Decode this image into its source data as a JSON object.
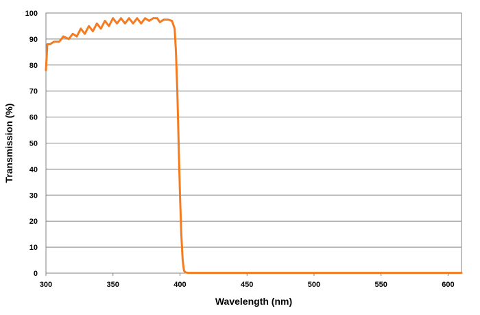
{
  "chart_data": {
    "type": "line",
    "title": "",
    "xlabel": "Wavelength (nm)",
    "ylabel": "Transmission (%)",
    "xlim": [
      300,
      610
    ],
    "ylim": [
      0,
      100
    ],
    "x_ticks": [
      300,
      350,
      400,
      450,
      500,
      550,
      600
    ],
    "y_ticks": [
      0,
      10,
      20,
      30,
      40,
      50,
      60,
      70,
      80,
      90,
      100
    ],
    "grid": "horizontal",
    "legend": "none",
    "line_color": "#F47B20",
    "series": [
      {
        "x": [
          300,
          301,
          303,
          306,
          310,
          313,
          317,
          320,
          323,
          326,
          329,
          332,
          335,
          338,
          341,
          344,
          347,
          350,
          353,
          356,
          359,
          362,
          365,
          368,
          371,
          374,
          377,
          380,
          383,
          385,
          388,
          391,
          394,
          396,
          397,
          398,
          399,
          400,
          401,
          402,
          403,
          404,
          406,
          410,
          450,
          500,
          550,
          600,
          610
        ],
        "y": [
          78,
          88,
          88,
          89,
          89,
          91,
          90,
          92,
          91,
          94,
          92,
          95,
          93,
          96,
          94,
          97,
          95,
          98,
          96,
          98,
          96,
          98,
          96,
          98,
          96,
          98,
          97,
          98,
          98,
          96.5,
          97.5,
          97.5,
          97,
          94,
          85,
          70,
          50,
          30,
          15,
          5,
          1,
          0.3,
          0.1,
          0.1,
          0.1,
          0.1,
          0.1,
          0.1,
          0.1
        ]
      }
    ]
  }
}
